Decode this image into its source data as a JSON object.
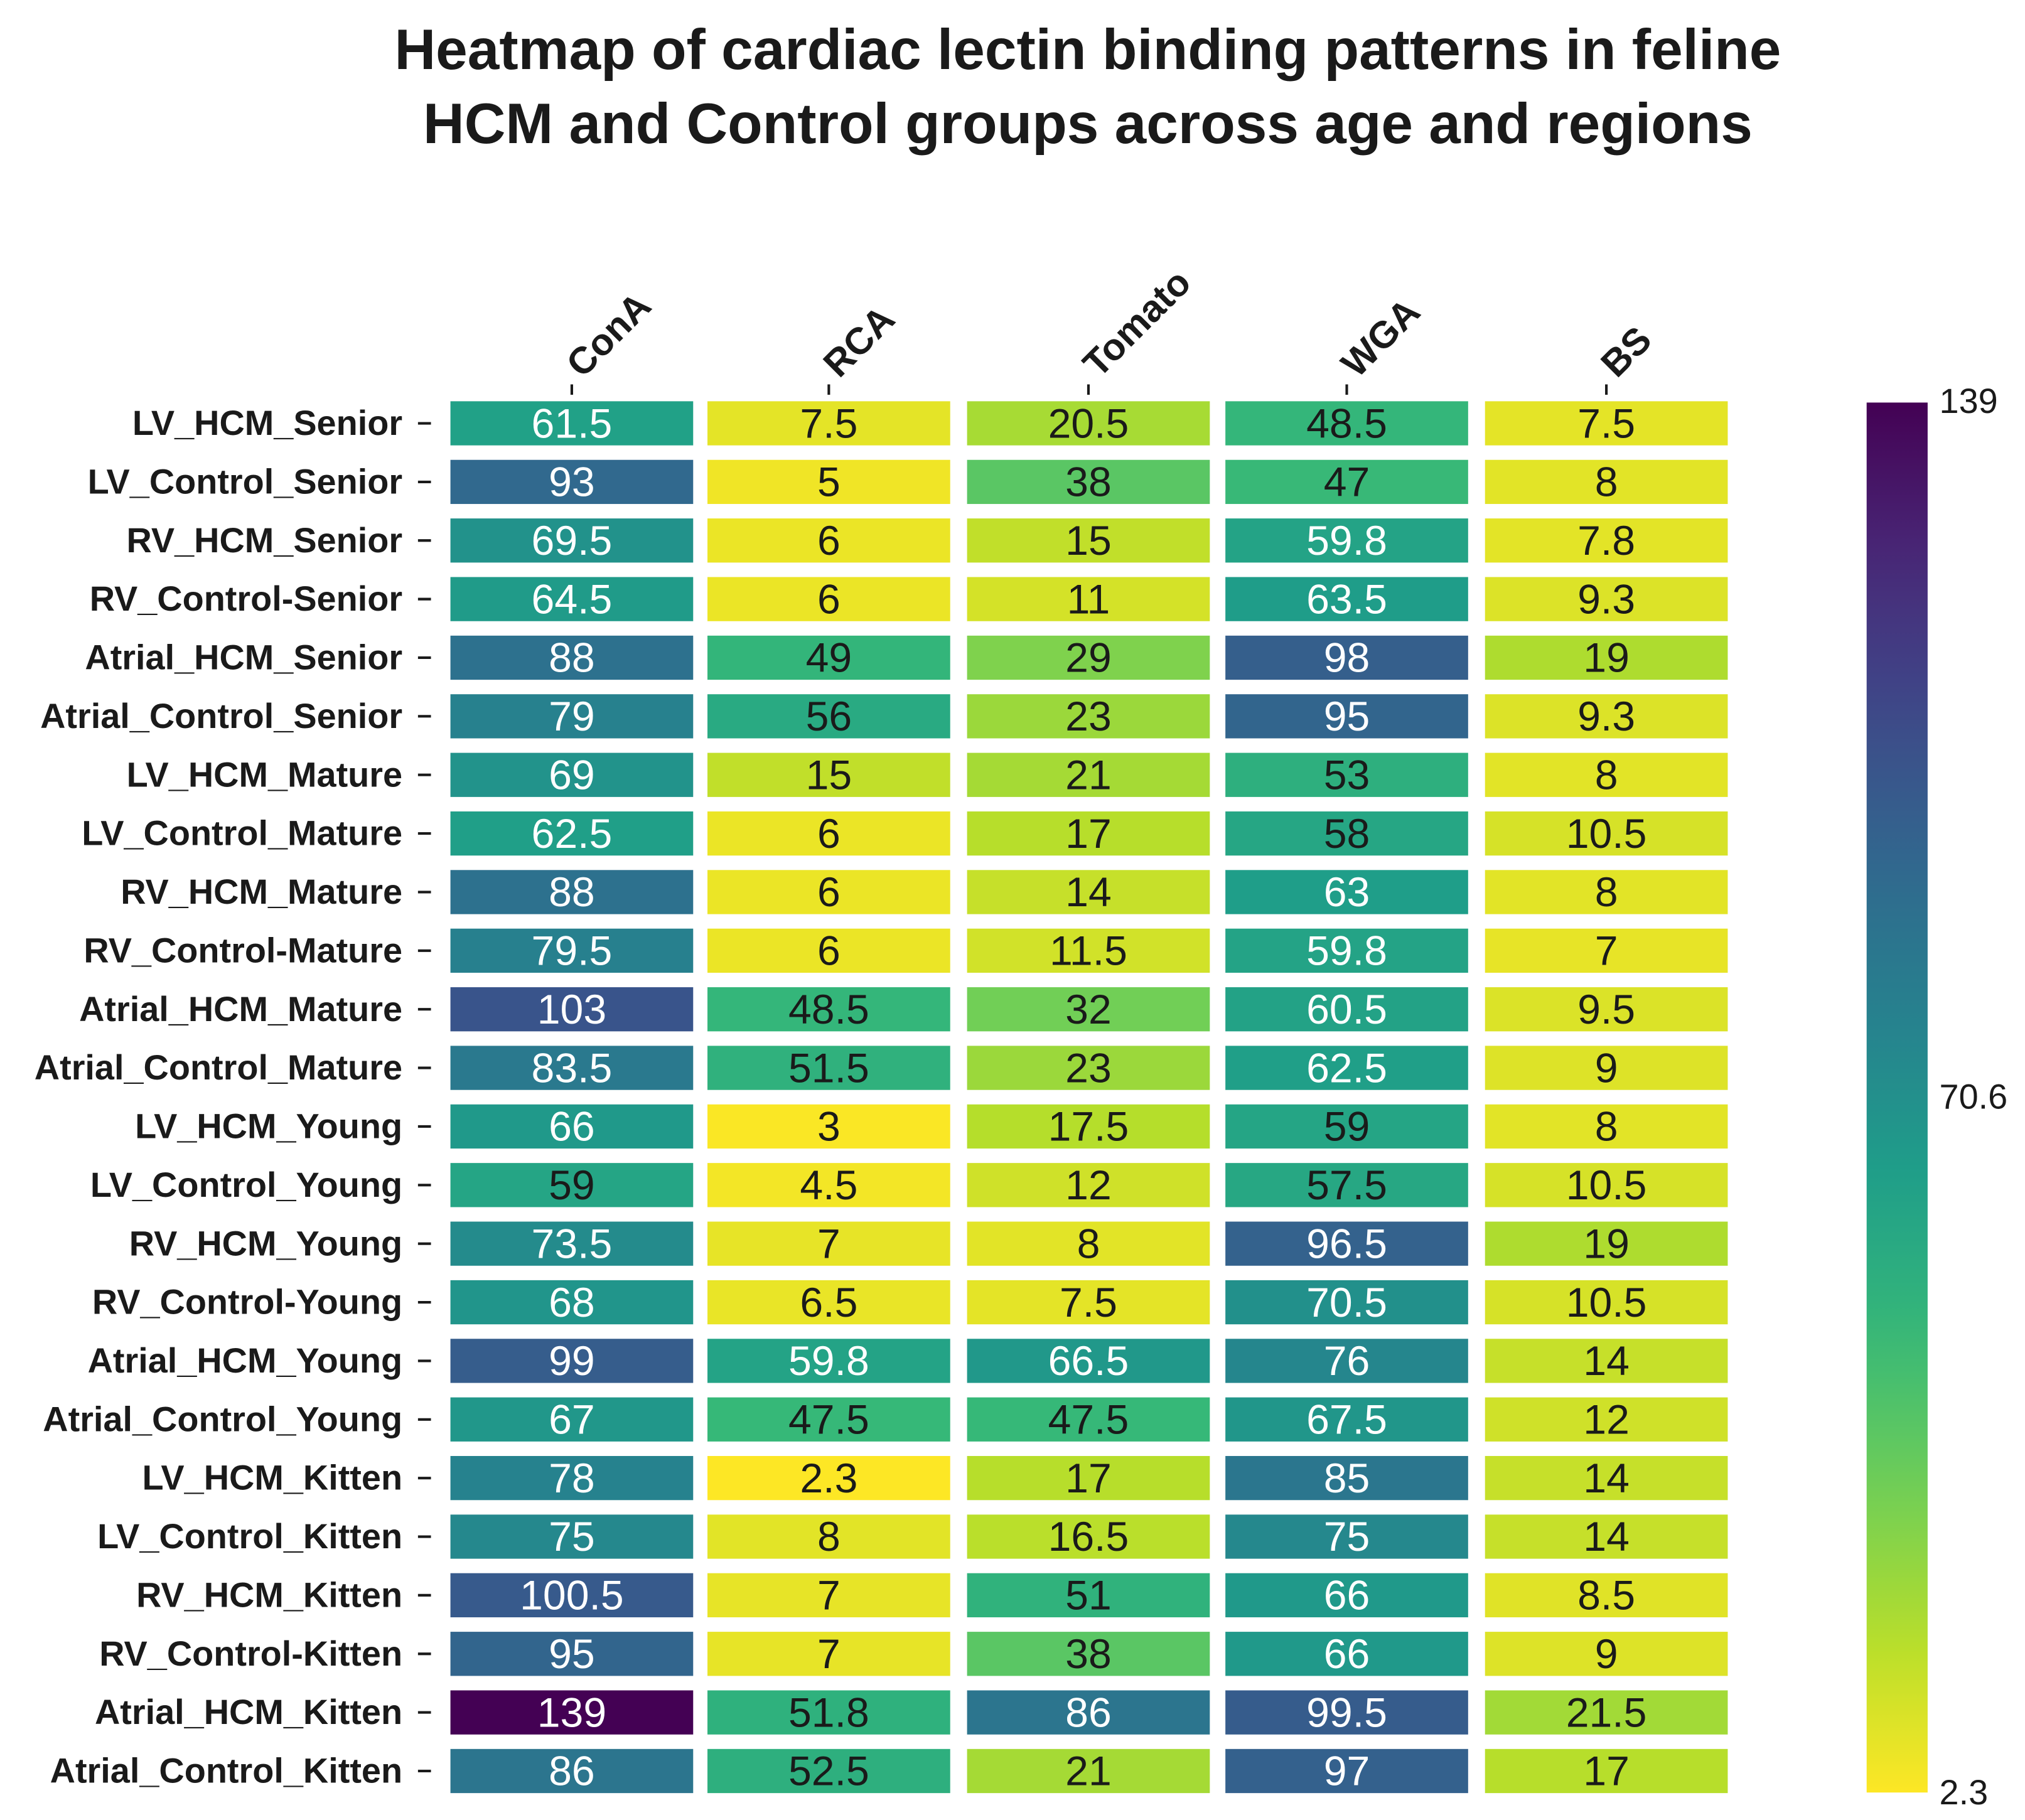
{
  "chart_data": {
    "type": "heatmap",
    "title": [
      "Heatmap of cardiac lectin binding patterns in feline",
      "HCM and Control groups across age and regions"
    ],
    "columns": [
      "ConA",
      "RCA",
      "Tomato",
      "WGA",
      "BS"
    ],
    "rows": [
      "LV_HCM_Senior",
      "LV_Control_Senior",
      "RV_HCM_Senior",
      "RV_Control-Senior",
      "Atrial_HCM_Senior",
      "Atrial_Control_Senior",
      "LV_HCM_Mature",
      "LV_Control_Mature",
      "RV_HCM_Mature",
      "RV_Control-Mature",
      "Atrial_HCM_Mature",
      "Atrial_Control_Mature",
      "LV_HCM_Young",
      "LV_Control_Young",
      "RV_HCM_Young",
      "RV_Control-Young",
      "Atrial_HCM_Young",
      "Atrial_Control_Young",
      "LV_HCM_Kitten",
      "LV_Control_Kitten",
      "RV_HCM_Kitten",
      "RV_Control-Kitten",
      "Atrial_HCM_Kitten",
      "Atrial_Control_Kitten"
    ],
    "values": [
      [
        61.5,
        7.5,
        20.5,
        48.5,
        7.5
      ],
      [
        93,
        5,
        38,
        47,
        8
      ],
      [
        69.5,
        6,
        15,
        59.8,
        7.8
      ],
      [
        64.5,
        6,
        11,
        63.5,
        9.3
      ],
      [
        88,
        49,
        29,
        98,
        19
      ],
      [
        79,
        56,
        23,
        95,
        9.3
      ],
      [
        69,
        15,
        21,
        53,
        8
      ],
      [
        62.5,
        6,
        17,
        58,
        10.5
      ],
      [
        88,
        6,
        14,
        63,
        8
      ],
      [
        79.5,
        6,
        11.5,
        59.8,
        7
      ],
      [
        103,
        48.5,
        32,
        60.5,
        9.5
      ],
      [
        83.5,
        51.5,
        23,
        62.5,
        9
      ],
      [
        66,
        3,
        17.5,
        59,
        8
      ],
      [
        59,
        4.5,
        12,
        57.5,
        10.5
      ],
      [
        73.5,
        7,
        8,
        96.5,
        19
      ],
      [
        68,
        6.5,
        7.5,
        70.5,
        10.5
      ],
      [
        99,
        59.8,
        66.5,
        76,
        14
      ],
      [
        67,
        47.5,
        47.5,
        67.5,
        12
      ],
      [
        78,
        2.3,
        17,
        85,
        14
      ],
      [
        75,
        8,
        16.5,
        75,
        14
      ],
      [
        100.5,
        7,
        51,
        66,
        8.5
      ],
      [
        95,
        7,
        38,
        66,
        9
      ],
      [
        139,
        51.8,
        86,
        99.5,
        21.5
      ],
      [
        86,
        52.5,
        21,
        97,
        17
      ]
    ],
    "colormap": "viridis_r",
    "vmin": 2.3,
    "vmax": 139,
    "colorbar_ticks": [
      "139",
      "70.6",
      "2.3"
    ],
    "grid": false,
    "legend": "right colorbar"
  }
}
